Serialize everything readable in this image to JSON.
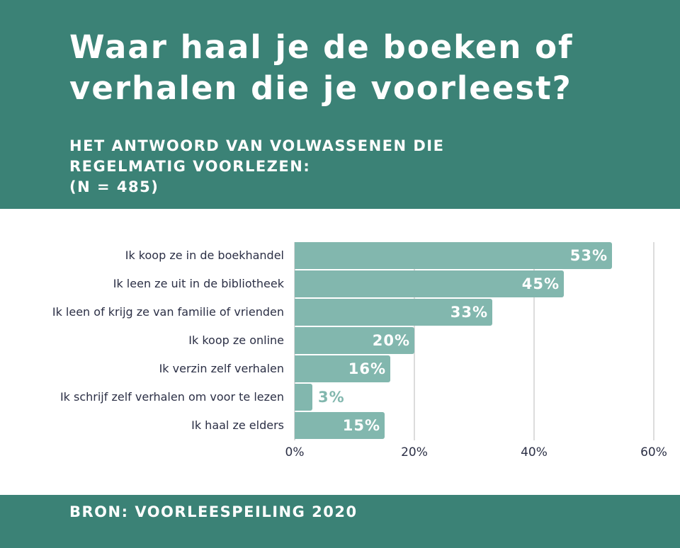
{
  "header": {
    "title": "Waar haal je de boeken of verhalen die je voorleest?",
    "subtitle_lines": [
      "HET ANTWOORD VAN VOLWASSENEN DIE",
      "REGELMATIG VOORLEZEN:",
      "(N = 485)"
    ]
  },
  "footer": {
    "source": "BRON: VOORLEESPEILING 2020"
  },
  "colors": {
    "header_bg": "#3b8276",
    "bar": "#82b7ae",
    "label_text": "#2b2f45",
    "gridline": "#dcdcdc"
  },
  "chart_data": {
    "type": "bar",
    "orientation": "horizontal",
    "title": "Waar haal je de boeken of verhalen die je voorleest?",
    "subtitle": "Het antwoord van volwassenen die regelmatig voorlezen: (N = 485)",
    "categories": [
      "Ik koop ze in de boekhandel",
      "Ik leen ze uit in de bibliotheek",
      "Ik leen of krijg ze van familie of vrienden",
      "Ik koop ze online",
      "Ik verzin zelf verhalen",
      "Ik schrijf zelf verhalen om voor te lezen",
      "Ik haal ze elders"
    ],
    "values": [
      53,
      45,
      33,
      20,
      16,
      3,
      15
    ],
    "value_labels": [
      "53%",
      "45%",
      "33%",
      "20%",
      "16%",
      "3%",
      "15%"
    ],
    "xlabel": "",
    "ylabel": "",
    "xlim": [
      0,
      60
    ],
    "x_ticks": [
      "0%",
      "20%",
      "40%",
      "60%"
    ],
    "grid": true,
    "legend": null,
    "source": "Voorleespeiling 2020"
  }
}
